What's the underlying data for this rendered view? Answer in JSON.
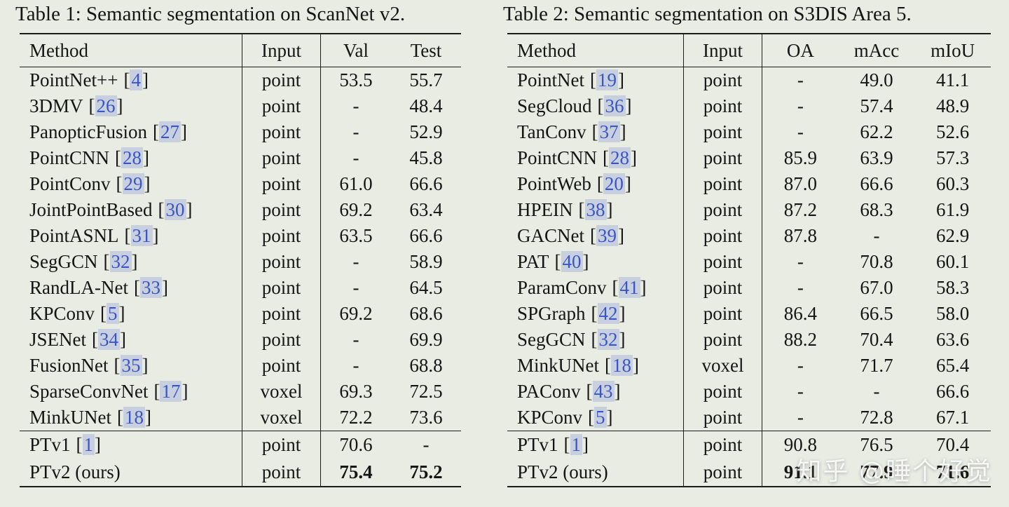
{
  "page": {
    "bg": "#e9ece3",
    "cite_color": "#3a55c5",
    "cite_bg": "#c8d0e0",
    "watermark": "知乎 @睡个好觉"
  },
  "tables": [
    {
      "caption": "Table 1: Semantic segmentation on ScanNet v2.",
      "columns": [
        "Method",
        "Input",
        "Val",
        "Test"
      ],
      "rows": [
        {
          "method": "PointNet++",
          "cite": "4",
          "input": "point",
          "metrics": [
            "53.5",
            "55.7"
          ]
        },
        {
          "method": "3DMV",
          "cite": "26",
          "input": "point",
          "metrics": [
            "-",
            "48.4"
          ]
        },
        {
          "method": "PanopticFusion",
          "cite": "27",
          "input": "point",
          "metrics": [
            "-",
            "52.9"
          ]
        },
        {
          "method": "PointCNN",
          "cite": "28",
          "input": "point",
          "metrics": [
            "-",
            "45.8"
          ]
        },
        {
          "method": "PointConv",
          "cite": "29",
          "input": "point",
          "metrics": [
            "61.0",
            "66.6"
          ]
        },
        {
          "method": "JointPointBased",
          "cite": "30",
          "input": "point",
          "metrics": [
            "69.2",
            "63.4"
          ]
        },
        {
          "method": "PointASNL",
          "cite": "31",
          "input": "point",
          "metrics": [
            "63.5",
            "66.6"
          ]
        },
        {
          "method": "SegGCN",
          "cite": "32",
          "input": "point",
          "metrics": [
            "-",
            "58.9"
          ]
        },
        {
          "method": "RandLA-Net",
          "cite": "33",
          "input": "point",
          "metrics": [
            "-",
            "64.5"
          ]
        },
        {
          "method": "KPConv",
          "cite": "5",
          "input": "point",
          "metrics": [
            "69.2",
            "68.6"
          ]
        },
        {
          "method": "JSENet",
          "cite": "34",
          "input": "point",
          "metrics": [
            "-",
            "69.9"
          ]
        },
        {
          "method": "FusionNet",
          "cite": "35",
          "input": "point",
          "metrics": [
            "-",
            "68.8"
          ]
        },
        {
          "method": "SparseConvNet",
          "cite": "17",
          "input": "voxel",
          "metrics": [
            "69.3",
            "72.5"
          ]
        },
        {
          "method": "MinkUNet",
          "cite": "18",
          "input": "voxel",
          "metrics": [
            "72.2",
            "73.6"
          ]
        }
      ],
      "footer_rows": [
        {
          "method": "PTv1",
          "cite": "1",
          "input": "point",
          "metrics": [
            "70.6",
            "-"
          ],
          "bold": false
        },
        {
          "method": "PTv2 (ours)",
          "cite": null,
          "input": "point",
          "metrics": [
            "75.4",
            "75.2"
          ],
          "bold": true
        }
      ]
    },
    {
      "caption": "Table 2: Semantic segmentation on S3DIS Area 5.",
      "columns": [
        "Method",
        "Input",
        "OA",
        "mAcc",
        "mIoU"
      ],
      "rows": [
        {
          "method": "PointNet",
          "cite": "19",
          "input": "point",
          "metrics": [
            "-",
            "49.0",
            "41.1"
          ]
        },
        {
          "method": "SegCloud",
          "cite": "36",
          "input": "point",
          "metrics": [
            "-",
            "57.4",
            "48.9"
          ]
        },
        {
          "method": "TanConv",
          "cite": "37",
          "input": "point",
          "metrics": [
            "-",
            "62.2",
            "52.6"
          ]
        },
        {
          "method": "PointCNN",
          "cite": "28",
          "input": "point",
          "metrics": [
            "85.9",
            "63.9",
            "57.3"
          ]
        },
        {
          "method": "PointWeb",
          "cite": "20",
          "input": "point",
          "metrics": [
            "87.0",
            "66.6",
            "60.3"
          ]
        },
        {
          "method": "HPEIN",
          "cite": "38",
          "input": "point",
          "metrics": [
            "87.2",
            "68.3",
            "61.9"
          ]
        },
        {
          "method": "GACNet",
          "cite": "39",
          "input": "point",
          "metrics": [
            "87.8",
            "-",
            "62.9"
          ]
        },
        {
          "method": "PAT",
          "cite": "40",
          "input": "point",
          "metrics": [
            "-",
            "70.8",
            "60.1"
          ]
        },
        {
          "method": "ParamConv",
          "cite": "41",
          "input": "point",
          "metrics": [
            "-",
            "67.0",
            "58.3"
          ]
        },
        {
          "method": "SPGraph",
          "cite": "42",
          "input": "point",
          "metrics": [
            "86.4",
            "66.5",
            "58.0"
          ]
        },
        {
          "method": "SegGCN",
          "cite": "32",
          "input": "point",
          "metrics": [
            "88.2",
            "70.4",
            "63.6"
          ]
        },
        {
          "method": "MinkUNet",
          "cite": "18",
          "input": "voxel",
          "metrics": [
            "-",
            "71.7",
            "65.4"
          ]
        },
        {
          "method": "PAConv",
          "cite": "43",
          "input": "point",
          "metrics": [
            "-",
            "-",
            "66.6"
          ]
        },
        {
          "method": "KPConv",
          "cite": "5",
          "input": "point",
          "metrics": [
            "-",
            "72.8",
            "67.1"
          ]
        }
      ],
      "footer_rows": [
        {
          "method": "PTv1",
          "cite": "1",
          "input": "point",
          "metrics": [
            "90.8",
            "76.5",
            "70.4"
          ],
          "bold": false
        },
        {
          "method": "PTv2 (ours)",
          "cite": null,
          "input": "point",
          "metrics": [
            "91.1",
            "77.9",
            "71.6"
          ],
          "bold": true
        }
      ]
    }
  ]
}
